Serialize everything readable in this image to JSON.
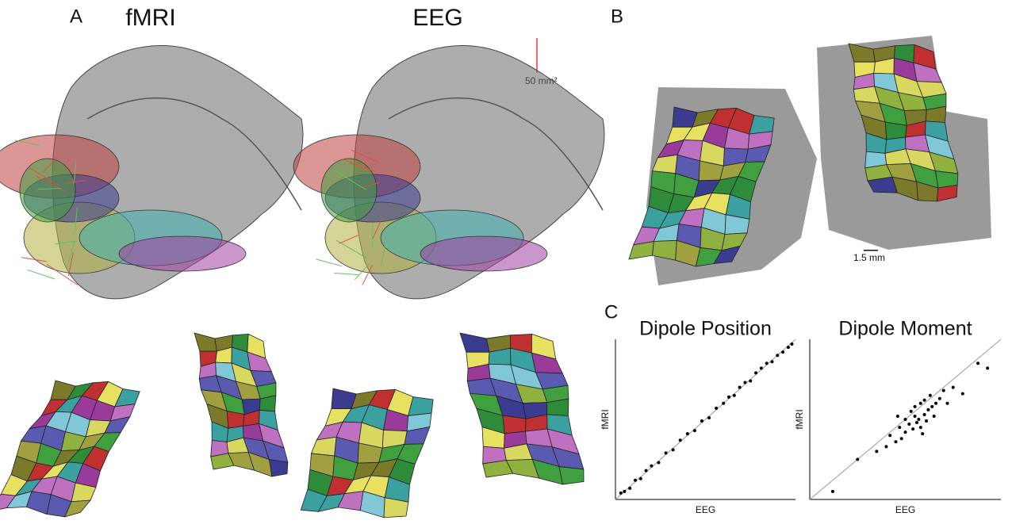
{
  "panels": {
    "A": {
      "label": "A",
      "fmri_title": "fMRI",
      "eeg_title": "EEG",
      "scale_label": "50 mm²"
    },
    "B": {
      "label": "B",
      "scale_label": "1.5 mm"
    },
    "C": {
      "label": "C"
    }
  },
  "chart_data": [
    {
      "type": "scatter",
      "title": "Dipole Position",
      "x_label": "EEG",
      "y_label": "fMRI",
      "color": "#000000",
      "identity_line": true,
      "xlim": [
        0,
        1
      ],
      "ylim": [
        0,
        1
      ],
      "x": [
        0.03,
        0.05,
        0.08,
        0.11,
        0.14,
        0.17,
        0.2,
        0.24,
        0.28,
        0.32,
        0.36,
        0.4,
        0.44,
        0.48,
        0.52,
        0.56,
        0.6,
        0.63,
        0.66,
        0.69,
        0.72,
        0.75,
        0.78,
        0.81,
        0.84,
        0.87,
        0.9,
        0.93,
        0.96,
        0.98
      ],
      "y": [
        0.04,
        0.05,
        0.07,
        0.12,
        0.13,
        0.18,
        0.21,
        0.23,
        0.29,
        0.31,
        0.37,
        0.41,
        0.43,
        0.49,
        0.51,
        0.57,
        0.6,
        0.64,
        0.65,
        0.7,
        0.73,
        0.74,
        0.79,
        0.82,
        0.85,
        0.86,
        0.9,
        0.92,
        0.95,
        0.97
      ]
    },
    {
      "type": "scatter",
      "title": "Dipole Moment",
      "x_label": "EEG",
      "y_label": "fMRI",
      "color": "#000000",
      "identity_line": true,
      "xlim": [
        0,
        1
      ],
      "ylim": [
        0,
        1
      ],
      "x": [
        0.12,
        0.25,
        0.35,
        0.4,
        0.42,
        0.45,
        0.47,
        0.48,
        0.5,
        0.5,
        0.52,
        0.53,
        0.54,
        0.55,
        0.55,
        0.56,
        0.57,
        0.58,
        0.58,
        0.6,
        0.6,
        0.61,
        0.62,
        0.63,
        0.64,
        0.65,
        0.66,
        0.68,
        0.7,
        0.72,
        0.75,
        0.8,
        0.88,
        0.93,
        0.46,
        0.59
      ],
      "y": [
        0.05,
        0.25,
        0.3,
        0.33,
        0.4,
        0.36,
        0.45,
        0.38,
        0.42,
        0.5,
        0.47,
        0.55,
        0.44,
        0.52,
        0.58,
        0.48,
        0.5,
        0.6,
        0.45,
        0.53,
        0.62,
        0.49,
        0.56,
        0.65,
        0.58,
        0.52,
        0.6,
        0.63,
        0.68,
        0.6,
        0.7,
        0.66,
        0.85,
        0.82,
        0.52,
        0.41
      ]
    }
  ]
}
